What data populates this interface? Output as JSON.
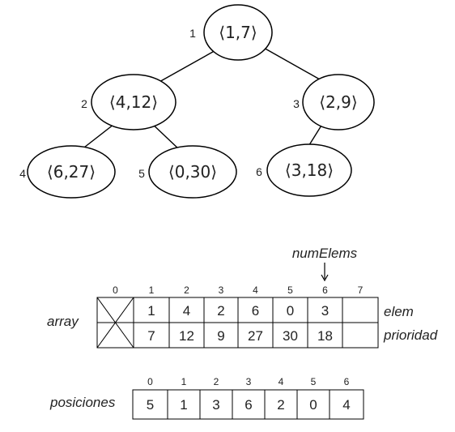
{
  "tree": {
    "nodes": [
      {
        "index": "1",
        "label": "⟨1,7⟩"
      },
      {
        "index": "2",
        "label": "⟨4,12⟩"
      },
      {
        "index": "3",
        "label": "⟨2,9⟩"
      },
      {
        "index": "4",
        "label": "⟨6,27⟩"
      },
      {
        "index": "5",
        "label": "⟨0,30⟩"
      },
      {
        "index": "6",
        "label": "⟨3,18⟩"
      }
    ]
  },
  "array": {
    "label": "array",
    "indices": [
      "0",
      "1",
      "2",
      "3",
      "4",
      "5",
      "6",
      "7"
    ],
    "elem_label": "elem",
    "prioridad_label": "prioridad",
    "elem": [
      "",
      "1",
      "4",
      "2",
      "6",
      "0",
      "3",
      ""
    ],
    "prioridad": [
      "",
      "7",
      "12",
      "9",
      "27",
      "30",
      "18",
      ""
    ],
    "pointer_label": "numElems"
  },
  "posiciones": {
    "label": "posiciones",
    "indices": [
      "0",
      "1",
      "2",
      "3",
      "4",
      "5",
      "6"
    ],
    "values": [
      "5",
      "1",
      "3",
      "6",
      "2",
      "0",
      "4"
    ]
  }
}
